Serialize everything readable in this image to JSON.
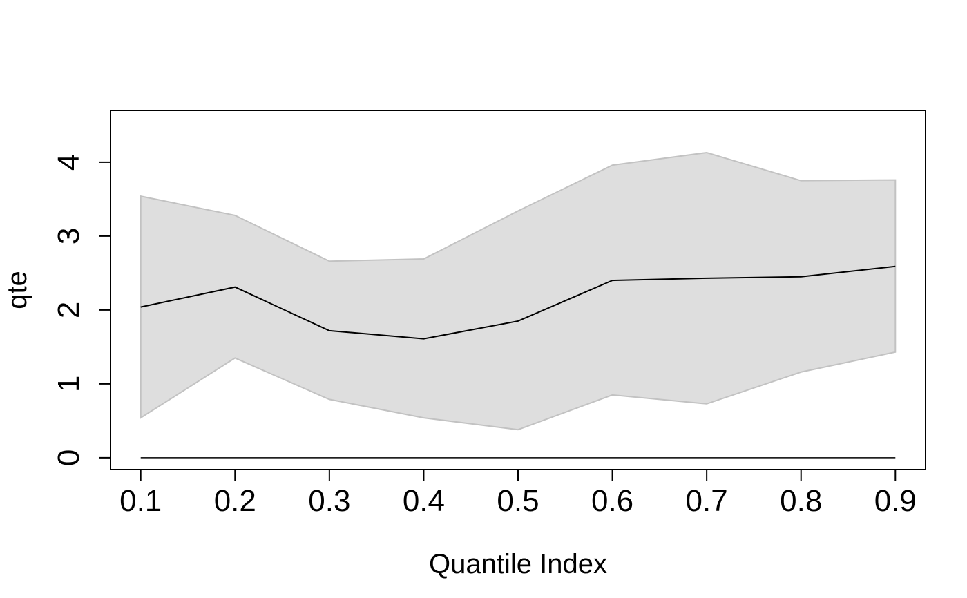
{
  "chart_data": {
    "type": "line",
    "title": "",
    "xlabel": "Quantile Index",
    "ylabel": "qte",
    "x": [
      0.1,
      0.2,
      0.3,
      0.4,
      0.5,
      0.6,
      0.7,
      0.8,
      0.9
    ],
    "x_tick_labels": [
      "0.1",
      "0.2",
      "0.3",
      "0.4",
      "0.5",
      "0.6",
      "0.7",
      "0.8",
      "0.9"
    ],
    "y_ticks": [
      0,
      1,
      2,
      3,
      4
    ],
    "y_tick_labels": [
      "0",
      "1",
      "2",
      "3",
      "4"
    ],
    "xlim": [
      0.068,
      0.932
    ],
    "ylim": [
      -0.16,
      4.7
    ],
    "grid": false,
    "series": [
      {
        "values": [
          2.04,
          2.31,
          1.72,
          1.61,
          1.85,
          2.4,
          2.43,
          2.45,
          2.59
        ]
      }
    ],
    "band": {
      "upper": [
        3.54,
        3.28,
        2.66,
        2.69,
        3.34,
        3.96,
        4.13,
        3.75,
        3.76
      ],
      "lower": [
        0.54,
        1.35,
        0.79,
        0.54,
        0.38,
        0.85,
        0.73,
        1.16,
        1.43
      ]
    },
    "reference_line": {
      "y": 0
    },
    "colors": {
      "line": "#000000",
      "band_fill": "#dedede",
      "band_stroke": "#c2c2c2",
      "axis": "#000000"
    }
  }
}
